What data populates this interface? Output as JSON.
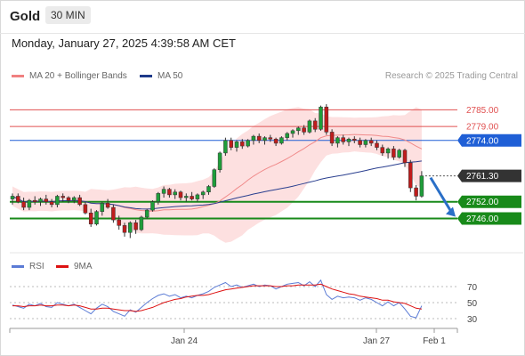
{
  "header": {
    "instrument": "Gold",
    "timeframe": "30 MIN"
  },
  "datetime": "Monday, January 27, 2025 4:39:58 AM CET",
  "legend": {
    "items": [
      {
        "label": "MA 20 + Bollinger Bands",
        "color": "#f08080"
      },
      {
        "label": "MA 50",
        "color": "#1e3a8a"
      }
    ],
    "credit": "Research © 2025 Trading Central"
  },
  "rsi_legend": {
    "items": [
      {
        "label": "RSI",
        "color": "#5b7bd5"
      },
      {
        "label": "9MA",
        "color": "#dd1111"
      }
    ]
  },
  "chart_data": [
    {
      "type": "candlestick",
      "title": "",
      "ylim": [
        2735,
        2795
      ],
      "x_ticks": [
        "Jan 24",
        "Jan 27",
        "Feb 1"
      ],
      "levels": [
        {
          "value": 2785.0,
          "label": "2785.00",
          "kind": "resistance",
          "color": "#e05050"
        },
        {
          "value": 2779.0,
          "label": "2779.00",
          "kind": "resistance",
          "color": "#e05050"
        },
        {
          "value": 2774.0,
          "label": "2774.00",
          "kind": "ma50",
          "color": "#1f5fd6"
        },
        {
          "value": 2761.3,
          "label": "2761.30",
          "kind": "last",
          "color": "#333333"
        },
        {
          "value": 2752.0,
          "label": "2752.00",
          "kind": "support",
          "color": "#188a1a"
        },
        {
          "value": 2746.0,
          "label": "2746.00",
          "kind": "support",
          "color": "#188a1a"
        }
      ],
      "forecast": {
        "from": 2761.3,
        "to": 2746.0,
        "direction": "down",
        "color": "#2a6fc7"
      },
      "candles": [
        [
          2753.0,
          2755.0,
          2751.0,
          2754.0
        ],
        [
          2754.0,
          2755.0,
          2751.5,
          2752.0
        ],
        [
          2752.0,
          2753.5,
          2749.0,
          2750.0
        ],
        [
          2750.0,
          2753.0,
          2749.0,
          2752.5
        ],
        [
          2752.5,
          2754.0,
          2751.0,
          2752.0
        ],
        [
          2752.0,
          2753.5,
          2750.5,
          2753.0
        ],
        [
          2753.0,
          2754.5,
          2751.0,
          2752.0
        ],
        [
          2752.0,
          2753.0,
          2750.0,
          2751.0
        ],
        [
          2751.0,
          2754.5,
          2750.0,
          2754.0
        ],
        [
          2754.0,
          2755.0,
          2752.0,
          2753.5
        ],
        [
          2753.5,
          2754.0,
          2751.5,
          2752.5
        ],
        [
          2752.5,
          2754.0,
          2751.5,
          2753.5
        ],
        [
          2753.5,
          2754.5,
          2750.5,
          2751.0
        ],
        [
          2751.0,
          2752.0,
          2747.5,
          2748.0
        ],
        [
          2748.0,
          2749.5,
          2743.0,
          2744.0
        ],
        [
          2744.0,
          2749.0,
          2743.5,
          2748.5
        ],
        [
          2748.5,
          2752.0,
          2747.0,
          2751.5
        ],
        [
          2751.5,
          2753.0,
          2749.5,
          2750.0
        ],
        [
          2750.0,
          2751.0,
          2744.5,
          2745.5
        ],
        [
          2745.5,
          2747.0,
          2742.0,
          2743.5
        ],
        [
          2743.5,
          2744.5,
          2739.5,
          2741.0
        ],
        [
          2741.0,
          2745.0,
          2739.0,
          2744.5
        ],
        [
          2744.5,
          2745.5,
          2740.5,
          2742.0
        ],
        [
          2742.0,
          2747.0,
          2741.5,
          2746.5
        ],
        [
          2746.5,
          2749.5,
          2746.0,
          2749.0
        ],
        [
          2749.0,
          2752.5,
          2748.5,
          2752.0
        ],
        [
          2752.0,
          2755.5,
          2751.0,
          2755.0
        ],
        [
          2755.0,
          2757.5,
          2753.5,
          2756.5
        ],
        [
          2756.5,
          2757.0,
          2753.5,
          2754.5
        ],
        [
          2754.5,
          2756.5,
          2753.0,
          2755.5
        ],
        [
          2755.5,
          2756.0,
          2752.5,
          2753.5
        ],
        [
          2753.5,
          2755.0,
          2752.0,
          2754.0
        ],
        [
          2754.0,
          2755.5,
          2752.5,
          2753.0
        ],
        [
          2753.0,
          2755.0,
          2752.0,
          2754.5
        ],
        [
          2754.5,
          2756.0,
          2753.0,
          2755.5
        ],
        [
          2755.5,
          2758.0,
          2754.5,
          2757.5
        ],
        [
          2757.5,
          2764.0,
          2757.0,
          2763.5
        ],
        [
          2763.5,
          2770.0,
          2762.5,
          2769.5
        ],
        [
          2769.5,
          2775.0,
          2768.5,
          2774.0
        ],
        [
          2774.0,
          2775.0,
          2770.5,
          2771.5
        ],
        [
          2771.5,
          2774.0,
          2770.0,
          2773.5
        ],
        [
          2773.5,
          2774.5,
          2771.0,
          2772.0
        ],
        [
          2772.0,
          2774.5,
          2771.5,
          2774.0
        ],
        [
          2774.0,
          2776.0,
          2772.5,
          2775.5
        ],
        [
          2775.5,
          2776.5,
          2773.0,
          2774.0
        ],
        [
          2774.0,
          2775.5,
          2772.5,
          2775.0
        ],
        [
          2775.0,
          2776.0,
          2773.5,
          2774.5
        ],
        [
          2774.5,
          2775.0,
          2772.0,
          2773.0
        ],
        [
          2773.0,
          2775.5,
          2772.5,
          2775.0
        ],
        [
          2775.0,
          2777.0,
          2774.0,
          2776.5
        ],
        [
          2776.5,
          2778.0,
          2775.0,
          2777.5
        ],
        [
          2777.5,
          2779.0,
          2776.0,
          2778.5
        ],
        [
          2778.5,
          2779.5,
          2776.0,
          2777.0
        ],
        [
          2777.0,
          2781.5,
          2776.5,
          2781.0
        ],
        [
          2781.0,
          2782.0,
          2777.0,
          2778.0
        ],
        [
          2778.0,
          2786.5,
          2777.5,
          2786.0
        ],
        [
          2786.0,
          2787.0,
          2776.0,
          2777.0
        ],
        [
          2777.0,
          2778.0,
          2772.0,
          2773.0
        ],
        [
          2773.0,
          2775.5,
          2771.5,
          2775.0
        ],
        [
          2775.0,
          2776.0,
          2772.5,
          2773.5
        ],
        [
          2773.5,
          2775.0,
          2772.0,
          2774.5
        ],
        [
          2774.5,
          2775.5,
          2773.0,
          2774.0
        ],
        [
          2774.0,
          2775.0,
          2771.5,
          2772.5
        ],
        [
          2772.5,
          2774.5,
          2771.5,
          2774.0
        ],
        [
          2774.0,
          2775.0,
          2772.0,
          2773.0
        ],
        [
          2773.0,
          2774.0,
          2770.5,
          2771.5
        ],
        [
          2771.5,
          2772.5,
          2768.5,
          2769.5
        ],
        [
          2769.5,
          2771.5,
          2767.5,
          2771.0
        ],
        [
          2771.0,
          2772.0,
          2767.0,
          2768.0
        ],
        [
          2768.0,
          2771.0,
          2767.5,
          2770.5
        ],
        [
          2770.5,
          2771.0,
          2764.5,
          2766.0
        ],
        [
          2766.0,
          2767.0,
          2755.5,
          2757.0
        ],
        [
          2757.0,
          2758.0,
          2752.5,
          2754.0
        ],
        [
          2754.0,
          2763.0,
          2753.5,
          2761.3
        ]
      ]
    },
    {
      "type": "line",
      "title": "",
      "ylim": [
        20,
        80
      ],
      "y_ticks": [
        70,
        50,
        30
      ],
      "series": [
        {
          "name": "RSI",
          "values": [
            47,
            45,
            43,
            48,
            46,
            49,
            45,
            44,
            50,
            48,
            46,
            48,
            44,
            40,
            36,
            43,
            48,
            45,
            39,
            36,
            33,
            41,
            38,
            44,
            50,
            55,
            59,
            61,
            58,
            60,
            56,
            58,
            56,
            59,
            61,
            64,
            69,
            72,
            75,
            70,
            72,
            69,
            71,
            73,
            70,
            72,
            71,
            67,
            70,
            73,
            74,
            75,
            71,
            76,
            70,
            78,
            60,
            54,
            58,
            56,
            57,
            56,
            53,
            56,
            54,
            50,
            46,
            51,
            46,
            50,
            42,
            33,
            31,
            46
          ]
        },
        {
          "name": "9MA",
          "values": [
            46,
            46,
            45,
            46,
            46,
            47,
            46,
            46,
            47,
            47,
            46,
            47,
            46,
            44,
            42,
            42,
            43,
            43,
            42,
            41,
            40,
            40,
            39,
            40,
            42,
            44,
            47,
            50,
            52,
            54,
            55,
            57,
            58,
            59,
            59,
            60,
            62,
            64,
            66,
            67,
            68,
            69,
            70,
            71,
            71,
            71,
            71,
            70,
            70,
            71,
            71,
            72,
            72,
            72,
            72,
            73,
            70,
            67,
            65,
            63,
            61,
            60,
            58,
            57,
            56,
            55,
            53,
            53,
            51,
            50,
            49,
            46,
            43,
            42
          ]
        }
      ]
    }
  ]
}
